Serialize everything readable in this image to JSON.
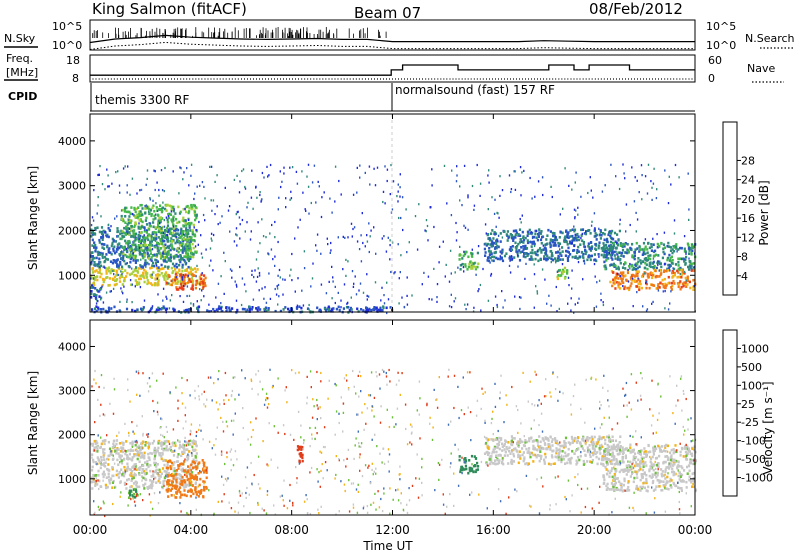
{
  "header": {
    "station": "King Salmon (fitACF)",
    "beam": "Beam 07",
    "date": "08/Feb/2012"
  },
  "noise_panel": {
    "left_label": "N.Sky",
    "right_label": "N.Search",
    "y_ticks": [
      "10^5",
      "10^0"
    ],
    "right_ticks": [
      "10^5",
      "10^0"
    ]
  },
  "freq_panel": {
    "left_label_1": "Freq.",
    "left_label_2": "[MHz]",
    "right_label": "Nave",
    "y_ticks": [
      "18",
      "8"
    ],
    "right_ticks": [
      "60",
      "0"
    ]
  },
  "cpid": {
    "label": "CPID",
    "segments": [
      {
        "name": "themis 3300 RF",
        "start_hour": 0
      },
      {
        "name": "normalsound (fast) 157 RF",
        "start_hour": 12
      }
    ]
  },
  "x_axis": {
    "label": "Time UT",
    "ticks": [
      "00:00",
      "04:00",
      "08:00",
      "12:00",
      "16:00",
      "20:00",
      "00:00"
    ]
  },
  "power_panel": {
    "ylabel": "Slant Range [km]",
    "y_ticks": [
      "1000",
      "2000",
      "3000",
      "4000"
    ],
    "colorbar_label": "Power [dB]",
    "colorbar_ticks": [
      "4",
      "8",
      "12",
      "16",
      "20",
      "24",
      "28"
    ],
    "colors": [
      "#1f2bd8",
      "#2a55c4",
      "#2f8a7a",
      "#45b84a",
      "#a8cf3a",
      "#f4b418",
      "#f07a18",
      "#e8401a",
      "#e0001a"
    ]
  },
  "velocity_panel": {
    "ylabel": "Slant Range [km]",
    "y_ticks": [
      "1000",
      "2000",
      "3000",
      "4000"
    ],
    "colorbar_label": "Velocity [m s⁻¹]",
    "colorbar_ticks": [
      "1000",
      "500",
      "100",
      "25",
      "-25",
      "-100",
      "-500",
      "-1000"
    ],
    "colors": [
      "#2b3fc0",
      "#3f6fb8",
      "#2f8a5a",
      "#6cc03a",
      "#c8c8c8",
      "#f4b418",
      "#f07a18",
      "#e03c1a",
      "#e0001a"
    ]
  },
  "chart_data": {
    "type": "heatmap",
    "x_range_hours": [
      0,
      24
    ],
    "y_range_km": [
      180,
      4600
    ],
    "noise_sky_log10": [
      [
        0,
        0.8
      ],
      [
        1,
        1.6
      ],
      [
        2,
        1.9
      ],
      [
        3,
        2.4
      ],
      [
        4,
        2.0
      ],
      [
        5,
        1.8
      ],
      [
        6,
        1.6
      ],
      [
        7,
        1.5
      ],
      [
        8,
        1.6
      ],
      [
        9,
        1.7
      ],
      [
        10,
        1.5
      ],
      [
        11,
        1.5
      ],
      [
        12,
        1.0
      ],
      [
        13,
        1.0
      ],
      [
        14,
        1.0
      ],
      [
        15,
        1.0
      ],
      [
        16,
        1.0
      ],
      [
        17,
        1.0
      ],
      [
        18,
        1.2
      ],
      [
        19,
        1.1
      ],
      [
        20,
        1.0
      ],
      [
        21,
        1.0
      ],
      [
        22,
        1.0
      ],
      [
        23,
        1.0
      ],
      [
        24,
        1.0
      ]
    ],
    "frequency_mhz": [
      [
        0,
        10.2
      ],
      [
        11.95,
        10.2
      ],
      [
        11.95,
        12.6
      ],
      [
        12.4,
        12.6
      ],
      [
        12.4,
        14.8
      ],
      [
        14.6,
        14.8
      ],
      [
        14.6,
        12.6
      ],
      [
        18.2,
        12.6
      ],
      [
        18.2,
        14.8
      ],
      [
        19.2,
        14.8
      ],
      [
        19.2,
        12.6
      ],
      [
        19.8,
        12.6
      ],
      [
        19.8,
        14.8
      ],
      [
        21.4,
        14.8
      ],
      [
        21.4,
        12.6
      ],
      [
        24,
        12.6
      ]
    ],
    "power_regions": [
      {
        "t0": 0.0,
        "t1": 4.5,
        "r0": 800,
        "r1": 1200,
        "db": 20
      },
      {
        "t0": 3.0,
        "t1": 4.6,
        "r0": 700,
        "r1": 1050,
        "db": 28
      },
      {
        "t0": 0.0,
        "t1": 4.0,
        "r0": 1200,
        "r1": 2100,
        "db": 8
      },
      {
        "t0": 1.2,
        "t1": 4.2,
        "r0": 1400,
        "r1": 2600,
        "db": 14
      },
      {
        "t0": 0.0,
        "t1": 0.4,
        "r0": 500,
        "r1": 800,
        "db": 6
      },
      {
        "t0": 14.6,
        "t1": 15.4,
        "r0": 1150,
        "r1": 1550,
        "db": 14
      },
      {
        "t0": 15.6,
        "t1": 21.0,
        "r0": 1350,
        "r1": 2050,
        "db": 8
      },
      {
        "t0": 18.5,
        "t1": 18.9,
        "r0": 950,
        "r1": 1200,
        "db": 18
      },
      {
        "t0": 20.3,
        "t1": 24.0,
        "r0": 1150,
        "r1": 1750,
        "db": 10
      },
      {
        "t0": 20.6,
        "t1": 24.0,
        "r0": 700,
        "r1": 1150,
        "db": 26
      },
      {
        "t0": 0.0,
        "t1": 12.0,
        "r0": 200,
        "r1": 330,
        "db": 6
      }
    ],
    "velocity_regions": [
      {
        "t0": 0.0,
        "t1": 4.2,
        "r0": 800,
        "r1": 1900,
        "v": 0
      },
      {
        "t0": 3.0,
        "t1": 4.6,
        "r0": 600,
        "r1": 1450,
        "v": -300
      },
      {
        "t0": 1.5,
        "t1": 1.9,
        "r0": 600,
        "r1": 800,
        "v": 100
      },
      {
        "t0": 14.6,
        "t1": 15.4,
        "r0": 1150,
        "r1": 1550,
        "v": 200
      },
      {
        "t0": 15.6,
        "t1": 21.0,
        "r0": 1350,
        "r1": 2000,
        "v": 0
      },
      {
        "t0": 20.3,
        "t1": 24.0,
        "r0": 750,
        "r1": 1800,
        "v": 0
      },
      {
        "t0": 8.2,
        "t1": 8.4,
        "r0": 1400,
        "r1": 1800,
        "v": -600
      }
    ]
  }
}
